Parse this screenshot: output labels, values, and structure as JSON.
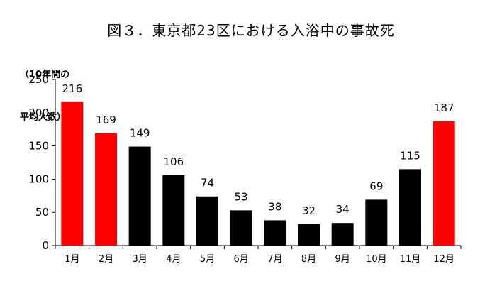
{
  "chart_data": {
    "type": "bar",
    "title": "図３．東京都23区における入浴中の事故死",
    "ylabel": [
      "（10年間の",
      "平均人数）"
    ],
    "xlabel": "",
    "categories": [
      "1月",
      "2月",
      "3月",
      "4月",
      "5月",
      "6月",
      "7月",
      "8月",
      "9月",
      "10月",
      "11月",
      "12月"
    ],
    "values": [
      216,
      169,
      149,
      106,
      74,
      53,
      38,
      32,
      34,
      69,
      115,
      187
    ],
    "colors": [
      "#ff0000",
      "#ff0000",
      "#000000",
      "#000000",
      "#000000",
      "#000000",
      "#000000",
      "#000000",
      "#000000",
      "#000000",
      "#000000",
      "#ff0000"
    ],
    "ylim": [
      0,
      250
    ],
    "yticks": [
      0,
      50,
      100,
      150,
      200,
      250
    ],
    "grid": false,
    "legend": "none"
  }
}
